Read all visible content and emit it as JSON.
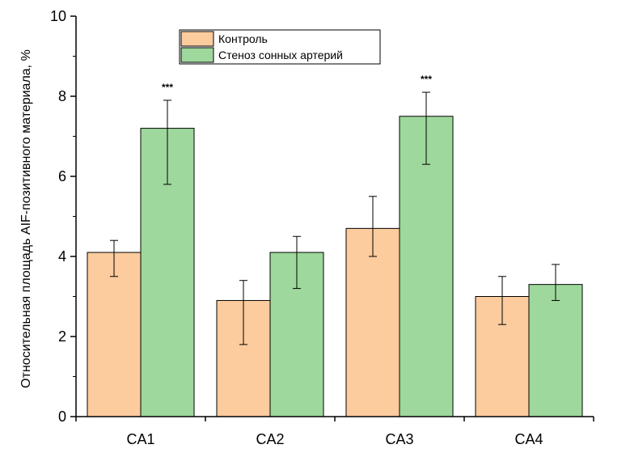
{
  "chart_data": {
    "type": "bar",
    "categories": [
      "CA1",
      "CA2",
      "CA3",
      "CA4"
    ],
    "series": [
      {
        "name": "Контроль",
        "color": "#FCCB9E",
        "values": [
          4.1,
          2.9,
          4.7,
          3.0
        ],
        "err_low": [
          3.5,
          1.8,
          4.0,
          2.3
        ],
        "err_high": [
          4.4,
          3.4,
          5.5,
          3.5
        ]
      },
      {
        "name": "Стеноз сонных артерий",
        "color": "#9ED89C",
        "values": [
          7.2,
          4.1,
          7.5,
          3.3
        ],
        "err_low": [
          5.8,
          3.2,
          6.3,
          2.9
        ],
        "err_high": [
          7.9,
          4.5,
          8.1,
          3.8
        ]
      }
    ],
    "annotations": [
      {
        "category": "CA1",
        "series": 1,
        "text": "***"
      },
      {
        "category": "CA3",
        "series": 1,
        "text": "***"
      }
    ],
    "ylabel": "Относительная площадь AIF-позитивного материала, %",
    "xlabel": "",
    "ylim": [
      0,
      10
    ],
    "yticks": [
      "0",
      "2",
      "4",
      "6",
      "8",
      "10"
    ],
    "grid": false,
    "legend_position": "top-left"
  }
}
